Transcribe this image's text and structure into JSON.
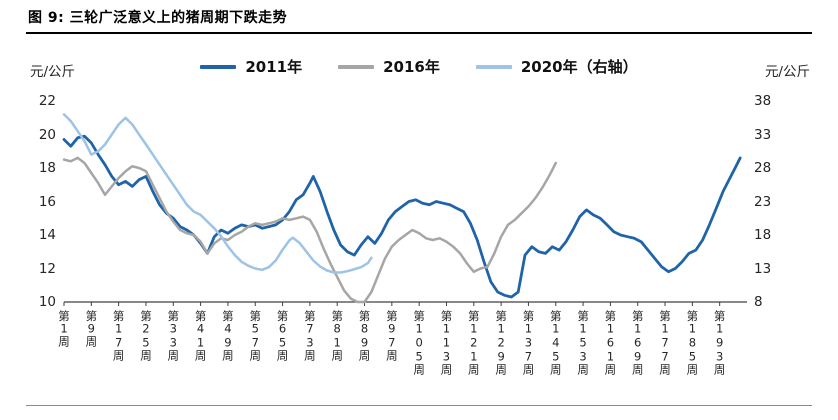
{
  "chart_data": {
    "type": "line",
    "title": "图 9: 三轮广泛意义上的猪周期下跌走势",
    "legend_position": "top",
    "grid": "off",
    "left_axis": {
      "label": "元/公斤",
      "min": 10,
      "max": 22,
      "ticks": [
        22,
        20,
        18,
        16,
        14,
        12,
        10
      ]
    },
    "right_axis": {
      "label": "元/公斤",
      "min": 8,
      "max": 38,
      "ticks": [
        38,
        33,
        28,
        23,
        18,
        13,
        8
      ]
    },
    "x_axis": {
      "min": 1,
      "max": 201,
      "ticks": [
        {
          "week": 1,
          "label": "第1周"
        },
        {
          "week": 9,
          "label": "第9周"
        },
        {
          "week": 17,
          "label": "第17周"
        },
        {
          "week": 25,
          "label": "第25周"
        },
        {
          "week": 33,
          "label": "第33周"
        },
        {
          "week": 41,
          "label": "第41周"
        },
        {
          "week": 49,
          "label": "第49周"
        },
        {
          "week": 57,
          "label": "第57周"
        },
        {
          "week": 65,
          "label": "第65周"
        },
        {
          "week": 73,
          "label": "第73周"
        },
        {
          "week": 81,
          "label": "第81周"
        },
        {
          "week": 89,
          "label": "第89周"
        },
        {
          "week": 97,
          "label": "第97周"
        },
        {
          "week": 105,
          "label": "第105周"
        },
        {
          "week": 113,
          "label": "第113周"
        },
        {
          "week": 121,
          "label": "第121周"
        },
        {
          "week": 129,
          "label": "第129周"
        },
        {
          "week": 137,
          "label": "第137周"
        },
        {
          "week": 145,
          "label": "第145周"
        },
        {
          "week": 153,
          "label": "第153周"
        },
        {
          "week": 161,
          "label": "第161周"
        },
        {
          "week": 169,
          "label": "第169周"
        },
        {
          "week": 177,
          "label": "第177周"
        },
        {
          "week": 185,
          "label": "第185周"
        },
        {
          "week": 193,
          "label": "第193周"
        }
      ]
    },
    "series": [
      {
        "name": "2011年",
        "axis": "left",
        "color": "#1f63a8",
        "width": 2.8,
        "points": [
          [
            1,
            19.7
          ],
          [
            3,
            19.3
          ],
          [
            5,
            19.8
          ],
          [
            7,
            19.9
          ],
          [
            9,
            19.5
          ],
          [
            11,
            18.8
          ],
          [
            13,
            18.2
          ],
          [
            15,
            17.5
          ],
          [
            17,
            17.0
          ],
          [
            19,
            17.2
          ],
          [
            21,
            16.9
          ],
          [
            23,
            17.3
          ],
          [
            25,
            17.5
          ],
          [
            27,
            16.6
          ],
          [
            29,
            15.8
          ],
          [
            31,
            15.3
          ],
          [
            33,
            15.0
          ],
          [
            35,
            14.5
          ],
          [
            37,
            14.3
          ],
          [
            39,
            14.0
          ],
          [
            41,
            13.5
          ],
          [
            43,
            12.9
          ],
          [
            45,
            13.9
          ],
          [
            47,
            14.3
          ],
          [
            49,
            14.1
          ],
          [
            51,
            14.4
          ],
          [
            53,
            14.6
          ],
          [
            55,
            14.5
          ],
          [
            57,
            14.6
          ],
          [
            59,
            14.4
          ],
          [
            61,
            14.5
          ],
          [
            63,
            14.6
          ],
          [
            65,
            14.9
          ],
          [
            67,
            15.4
          ],
          [
            69,
            16.1
          ],
          [
            71,
            16.4
          ],
          [
            73,
            17.1
          ],
          [
            74,
            17.5
          ],
          [
            76,
            16.6
          ],
          [
            78,
            15.4
          ],
          [
            80,
            14.3
          ],
          [
            82,
            13.4
          ],
          [
            84,
            13.0
          ],
          [
            86,
            12.8
          ],
          [
            88,
            13.4
          ],
          [
            90,
            13.9
          ],
          [
            92,
            13.5
          ],
          [
            94,
            14.1
          ],
          [
            96,
            14.9
          ],
          [
            98,
            15.4
          ],
          [
            100,
            15.7
          ],
          [
            102,
            16.0
          ],
          [
            104,
            16.1
          ],
          [
            106,
            15.9
          ],
          [
            108,
            15.8
          ],
          [
            110,
            16.0
          ],
          [
            112,
            15.9
          ],
          [
            114,
            15.8
          ],
          [
            116,
            15.6
          ],
          [
            118,
            15.4
          ],
          [
            120,
            14.7
          ],
          [
            122,
            13.7
          ],
          [
            124,
            12.4
          ],
          [
            126,
            11.2
          ],
          [
            128,
            10.6
          ],
          [
            130,
            10.4
          ],
          [
            132,
            10.3
          ],
          [
            134,
            10.6
          ],
          [
            136,
            12.8
          ],
          [
            138,
            13.3
          ],
          [
            140,
            13.0
          ],
          [
            142,
            12.9
          ],
          [
            144,
            13.3
          ],
          [
            146,
            13.1
          ],
          [
            148,
            13.6
          ],
          [
            150,
            14.3
          ],
          [
            152,
            15.1
          ],
          [
            154,
            15.5
          ],
          [
            156,
            15.2
          ],
          [
            158,
            15.0
          ],
          [
            160,
            14.6
          ],
          [
            162,
            14.2
          ],
          [
            164,
            14.0
          ],
          [
            166,
            13.9
          ],
          [
            168,
            13.8
          ],
          [
            170,
            13.6
          ],
          [
            172,
            13.1
          ],
          [
            174,
            12.6
          ],
          [
            176,
            12.1
          ],
          [
            178,
            11.8
          ],
          [
            180,
            12.0
          ],
          [
            182,
            12.4
          ],
          [
            184,
            12.9
          ],
          [
            186,
            13.1
          ],
          [
            188,
            13.7
          ],
          [
            190,
            14.6
          ],
          [
            192,
            15.6
          ],
          [
            194,
            16.6
          ],
          [
            196,
            17.4
          ],
          [
            198,
            18.2
          ],
          [
            199,
            18.6
          ]
        ]
      },
      {
        "name": "2016年",
        "axis": "left",
        "color": "#a6a6a6",
        "width": 2.5,
        "points": [
          [
            1,
            18.5
          ],
          [
            3,
            18.4
          ],
          [
            5,
            18.6
          ],
          [
            7,
            18.3
          ],
          [
            9,
            17.7
          ],
          [
            11,
            17.1
          ],
          [
            13,
            16.4
          ],
          [
            15,
            16.9
          ],
          [
            17,
            17.4
          ],
          [
            19,
            17.8
          ],
          [
            21,
            18.1
          ],
          [
            23,
            18.0
          ],
          [
            25,
            17.8
          ],
          [
            27,
            17.0
          ],
          [
            29,
            16.2
          ],
          [
            31,
            15.4
          ],
          [
            33,
            14.8
          ],
          [
            35,
            14.3
          ],
          [
            37,
            14.1
          ],
          [
            39,
            14.0
          ],
          [
            41,
            13.6
          ],
          [
            43,
            12.9
          ],
          [
            45,
            13.5
          ],
          [
            47,
            13.8
          ],
          [
            49,
            13.7
          ],
          [
            51,
            14.0
          ],
          [
            53,
            14.2
          ],
          [
            55,
            14.5
          ],
          [
            57,
            14.7
          ],
          [
            59,
            14.6
          ],
          [
            61,
            14.7
          ],
          [
            63,
            14.8
          ],
          [
            65,
            15.0
          ],
          [
            67,
            14.9
          ],
          [
            69,
            15.0
          ],
          [
            71,
            15.1
          ],
          [
            73,
            14.9
          ],
          [
            75,
            14.2
          ],
          [
            77,
            13.2
          ],
          [
            79,
            12.3
          ],
          [
            81,
            11.5
          ],
          [
            83,
            10.7
          ],
          [
            85,
            10.2
          ],
          [
            87,
            10.0
          ],
          [
            89,
            10.0
          ],
          [
            91,
            10.6
          ],
          [
            93,
            11.6
          ],
          [
            95,
            12.6
          ],
          [
            97,
            13.3
          ],
          [
            99,
            13.7
          ],
          [
            101,
            14.0
          ],
          [
            103,
            14.3
          ],
          [
            105,
            14.1
          ],
          [
            107,
            13.8
          ],
          [
            109,
            13.7
          ],
          [
            111,
            13.8
          ],
          [
            113,
            13.6
          ],
          [
            115,
            13.3
          ],
          [
            117,
            12.9
          ],
          [
            119,
            12.3
          ],
          [
            121,
            11.8
          ],
          [
            123,
            12.0
          ],
          [
            125,
            12.1
          ],
          [
            127,
            12.9
          ],
          [
            129,
            13.9
          ],
          [
            131,
            14.6
          ],
          [
            133,
            14.9
          ],
          [
            135,
            15.3
          ],
          [
            137,
            15.7
          ],
          [
            139,
            16.2
          ],
          [
            141,
            16.8
          ],
          [
            143,
            17.5
          ],
          [
            145,
            18.3
          ]
        ]
      },
      {
        "name": "2020年（右轴）",
        "axis": "right",
        "color": "#9dc3e6",
        "width": 2.5,
        "points": [
          [
            1,
            36.0
          ],
          [
            3,
            35.0
          ],
          [
            5,
            33.5
          ],
          [
            7,
            32.0
          ],
          [
            9,
            30.0
          ],
          [
            11,
            30.5
          ],
          [
            13,
            31.5
          ],
          [
            15,
            33.0
          ],
          [
            17,
            34.5
          ],
          [
            19,
            35.5
          ],
          [
            21,
            34.5
          ],
          [
            23,
            33.0
          ],
          [
            25,
            31.5
          ],
          [
            27,
            30.0
          ],
          [
            29,
            28.5
          ],
          [
            31,
            27.0
          ],
          [
            33,
            25.5
          ],
          [
            35,
            24.0
          ],
          [
            37,
            22.5
          ],
          [
            39,
            21.5
          ],
          [
            41,
            21.0
          ],
          [
            43,
            20.0
          ],
          [
            45,
            19.0
          ],
          [
            47,
            17.8
          ],
          [
            49,
            16.3
          ],
          [
            51,
            15.0
          ],
          [
            53,
            14.0
          ],
          [
            55,
            13.4
          ],
          [
            57,
            13.0
          ],
          [
            59,
            12.8
          ],
          [
            61,
            13.2
          ],
          [
            63,
            14.2
          ],
          [
            65,
            15.8
          ],
          [
            67,
            17.2
          ],
          [
            68,
            17.6
          ],
          [
            70,
            16.8
          ],
          [
            72,
            15.5
          ],
          [
            74,
            14.2
          ],
          [
            76,
            13.3
          ],
          [
            78,
            12.7
          ],
          [
            80,
            12.4
          ],
          [
            82,
            12.4
          ],
          [
            84,
            12.6
          ],
          [
            86,
            12.9
          ],
          [
            88,
            13.2
          ],
          [
            90,
            13.8
          ],
          [
            91,
            14.6
          ]
        ]
      }
    ]
  }
}
